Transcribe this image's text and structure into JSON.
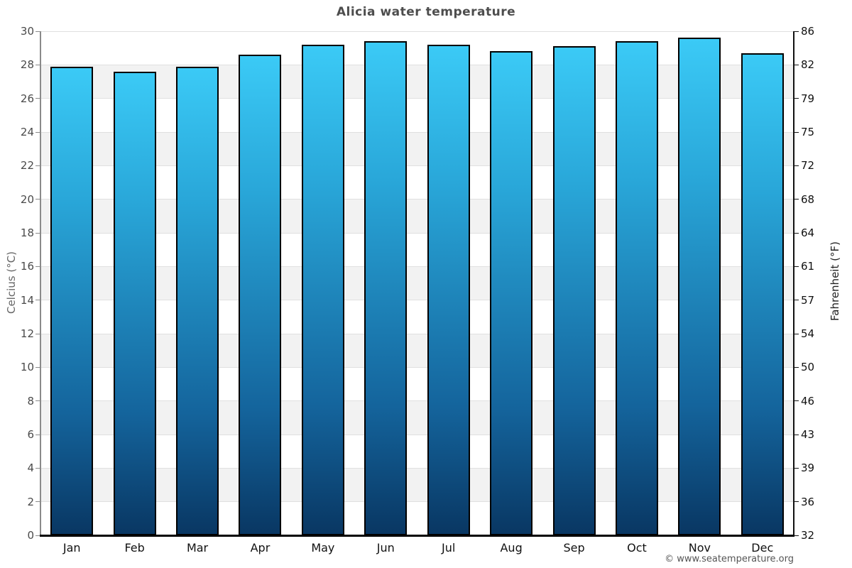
{
  "title": "Alicia water temperature",
  "copyright": "© www.seatemperature.org",
  "chart_data": {
    "type": "bar",
    "title": "Alicia water temperature",
    "categories": [
      "Jan",
      "Feb",
      "Mar",
      "Apr",
      "May",
      "Jun",
      "Jul",
      "Aug",
      "Sep",
      "Oct",
      "Nov",
      "Dec"
    ],
    "values": [
      27.9,
      27.6,
      27.9,
      28.6,
      29.2,
      29.4,
      29.2,
      28.8,
      29.1,
      29.4,
      29.6,
      28.7
    ],
    "series_name": "Water temperature",
    "xlabel": "",
    "ylabel_left": "Celcius (°C)",
    "ylabel_right": "Fahrenheit (°F)",
    "ylim": [
      0,
      30
    ],
    "celsius_ticks": [
      0,
      2,
      4,
      6,
      8,
      10,
      12,
      14,
      16,
      18,
      20,
      22,
      24,
      26,
      28,
      30
    ],
    "fahrenheit_ticks": [
      32,
      36,
      39,
      43,
      46,
      50,
      54,
      57,
      61,
      64,
      68,
      72,
      75,
      79,
      82,
      86
    ],
    "grid": "alternating horizontal bands every 2°C, light gridlines at each tick",
    "legend": "none",
    "colors": {
      "bar_gradient_top": "#3bcaf6",
      "bar_gradient_bottom": "#093763",
      "bar_border": "#000000",
      "band_gray": "#f2f2f2",
      "gridline": "#e0e0e0",
      "title_text": "#4d4d4d",
      "celsius_axis_text": "#4a4a4a",
      "fahrenheit_axis_text": "#111111",
      "background": "#ffffff"
    }
  }
}
